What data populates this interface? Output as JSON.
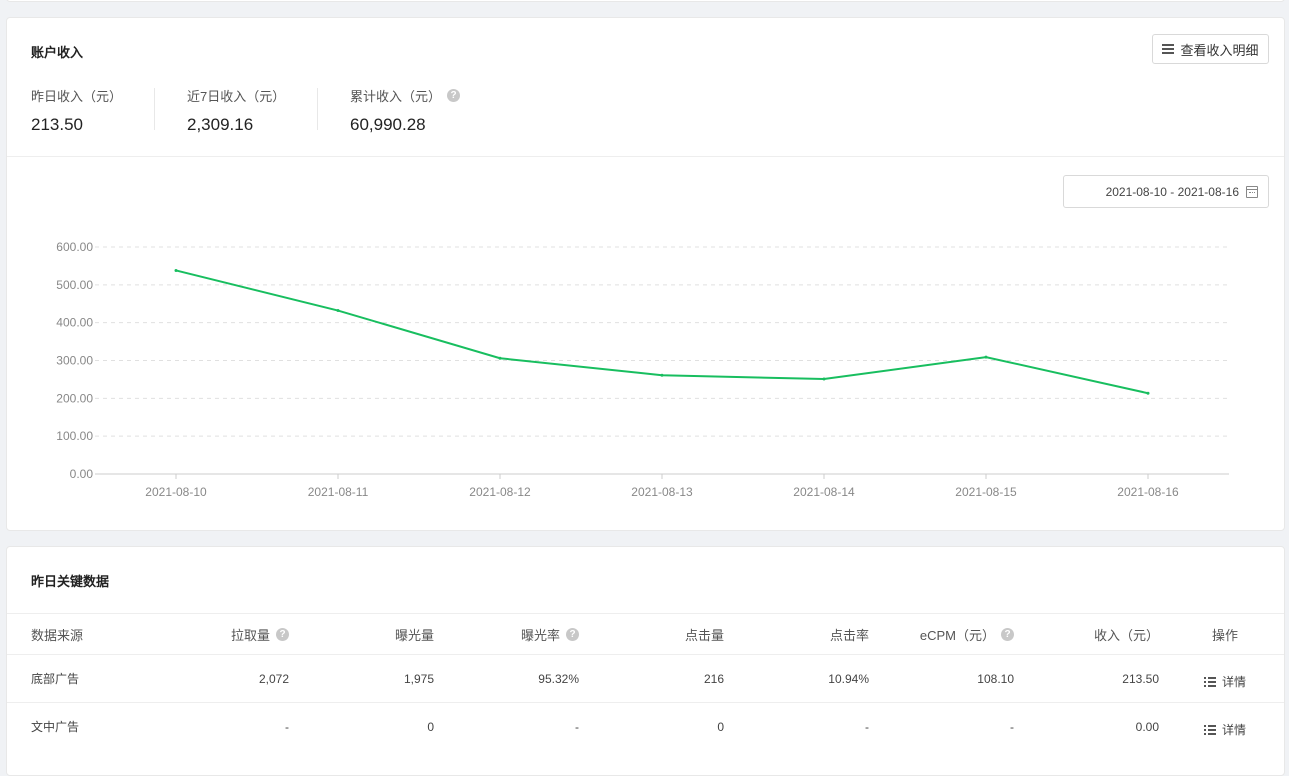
{
  "income": {
    "title": "账户收入",
    "detail_button": "查看收入明细",
    "stats": [
      {
        "label": "昨日收入（元）",
        "value": "213.50"
      },
      {
        "label": "近7日收入（元）",
        "value": "2,309.16"
      },
      {
        "label": "累计收入（元）",
        "value": "60,990.28",
        "has_help": true
      }
    ],
    "date_range": "2021-08-10 - 2021-08-16"
  },
  "chart_data": {
    "type": "line",
    "x": [
      "2021-08-10",
      "2021-08-11",
      "2021-08-12",
      "2021-08-13",
      "2021-08-14",
      "2021-08-15",
      "2021-08-16"
    ],
    "series": [
      {
        "values": [
          538,
          432,
          306,
          261,
          251,
          309,
          213.5
        ],
        "color": "#18be5f"
      }
    ],
    "yticks": [
      "0.00",
      "100.00",
      "200.00",
      "300.00",
      "400.00",
      "500.00",
      "600.00"
    ],
    "ylim": [
      0,
      600
    ],
    "grid": true,
    "xlabel": "",
    "ylabel": ""
  },
  "key_data": {
    "title": "昨日关键数据",
    "columns": [
      {
        "label": "数据来源",
        "help": false
      },
      {
        "label": "拉取量",
        "help": true
      },
      {
        "label": "曝光量",
        "help": false
      },
      {
        "label": "曝光率",
        "help": true
      },
      {
        "label": "点击量",
        "help": false
      },
      {
        "label": "点击率",
        "help": false
      },
      {
        "label": "eCPM（元）",
        "help": true
      },
      {
        "label": "收入（元）",
        "help": false
      },
      {
        "label": "操作",
        "help": false
      }
    ],
    "rows": [
      {
        "source": "底部广告",
        "pulls": "2,072",
        "impressions": "1,975",
        "impression_rate": "95.32%",
        "clicks": "216",
        "ctr": "10.94%",
        "ecpm": "108.10",
        "income": "213.50",
        "action": "详情"
      },
      {
        "source": "文中广告",
        "pulls": "-",
        "impressions": "0",
        "impression_rate": "-",
        "clicks": "0",
        "ctr": "-",
        "ecpm": "-",
        "income": "0.00",
        "action": "详情"
      }
    ]
  },
  "colors": {
    "accent": "#18be5f",
    "grid": "#e0e0e0"
  },
  "icons": {
    "help": "question-circle-icon",
    "list": "list-icon",
    "calendar": "calendar-icon",
    "menu": "menu-icon"
  }
}
